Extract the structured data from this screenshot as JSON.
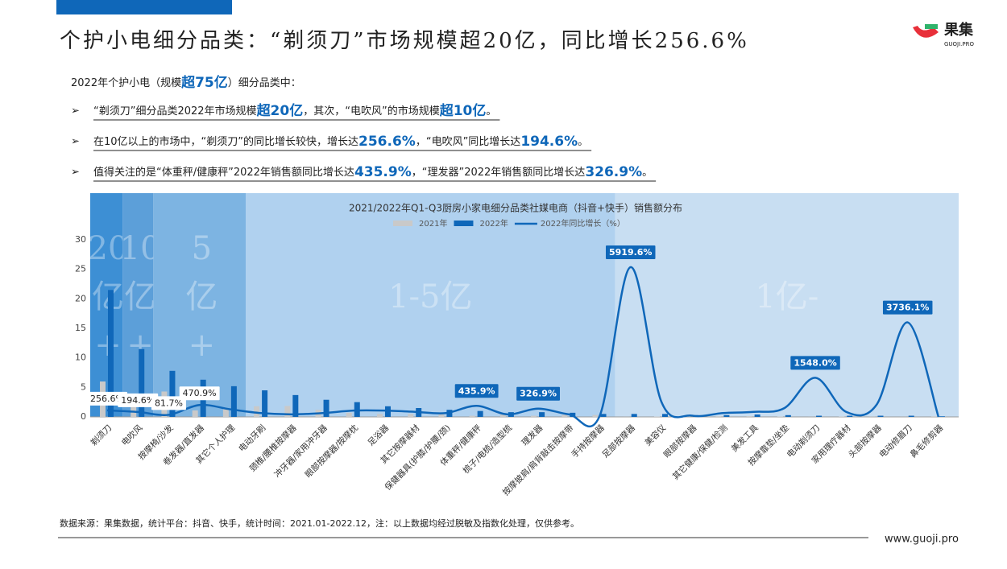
{
  "header": {
    "title": "个护小电细分品类：“剃须刀”市场规模超20亿，同比增长256.6%",
    "logo": "果集",
    "logo_sub": "GUOJI.PRO"
  },
  "intro": [
    {
      "text": "2022年个护小电（规模",
      "em": false
    },
    {
      "text": "超75亿",
      "em": true
    },
    {
      "text": "）细分品类中：",
      "em": false
    }
  ],
  "bullets": [
    [
      {
        "text": "“剃须刀”细分品类2022年市场规模",
        "em": false
      },
      {
        "text": "超20亿",
        "em": true
      },
      {
        "text": "，其次，“电吹风”的市场规模",
        "em": false
      },
      {
        "text": "超10亿",
        "em": true
      },
      {
        "text": "。",
        "em": false
      }
    ],
    [
      {
        "text": "在10亿以上的市场中，“剃须刀”的同比增长较快，增长达",
        "em": false
      },
      {
        "text": "256.6%",
        "em": true
      },
      {
        "text": "，“电吹风”同比增长达",
        "em": false
      },
      {
        "text": "194.6%",
        "em": true
      },
      {
        "text": "。",
        "em": false
      }
    ],
    [
      {
        "text": "值得关注的是“体重秤/健康秤”2022年销售额同比增长达",
        "em": false
      },
      {
        "text": "435.9%",
        "em": true
      },
      {
        "text": "，“理发器”2022年销售额同比增长达",
        "em": false
      },
      {
        "text": "326.9%",
        "em": true
      },
      {
        "text": "。",
        "em": false
      }
    ]
  ],
  "chart_data": {
    "type": "bar_line",
    "title": "2021/2022年Q1-Q3厨房小家电细分品类社媒电商（抖音+快手）销售额分布",
    "bands": [
      [
        "20",
        "亿",
        "+"
      ],
      [
        "10",
        "亿",
        "+"
      ],
      [
        "5",
        "亿",
        "+"
      ],
      [
        "1-5亿"
      ],
      [
        "1亿-"
      ]
    ],
    "categories": [
      "剃须刀",
      "电吹风",
      "按摩椅/沙发",
      "卷发器/直发器",
      "其它个人护理",
      "电动牙刷",
      "颈椎/腰椎按摩器",
      "冲牙器/家用冲牙器",
      "眼部按摩器/按摩枕",
      "足浴器",
      "其它按摩器材",
      "保健器具(护膝/护腰/颈)",
      "体重秤/健康秤",
      "梳子/电梳/造型梳",
      "理发器",
      "按摩披肩/肩背敲击按摩带",
      "手持按摩器",
      "足部按摩器",
      "美容仪",
      "眼部按摩器",
      "其它健康/保健/检测",
      "美发工具",
      "按摩靠垫/坐垫",
      "电动剃须刀",
      "家用理疗器材",
      "头部按摩器",
      "电动修眉刀",
      "鼻毛修剪器"
    ],
    "series": [
      {
        "name": "2021年",
        "color": "#c9c9c9",
        "values": [
          6.0,
          3.9,
          4.3,
          1.1,
          1.3,
          1.8,
          1.85,
          1.2,
          0.7,
          0.5,
          0.5,
          0.5,
          0.2,
          0.4,
          0.2,
          0.35,
          0.33,
          0.01,
          0.07,
          0.2,
          0.12,
          0.13,
          0.07,
          0.01,
          0.07,
          0.03,
          0.01,
          0.1
        ]
      },
      {
        "name": "2022年",
        "color": "#0f67b9",
        "values": [
          21.5,
          11.5,
          7.8,
          6.3,
          5.2,
          4.5,
          3.7,
          2.9,
          2.5,
          1.8,
          1.5,
          1.2,
          1.0,
          0.8,
          0.8,
          0.7,
          0.5,
          0.5,
          0.5,
          0.3,
          0.3,
          0.4,
          0.3,
          0.2,
          0.2,
          0.2,
          0.2,
          0.1
        ]
      },
      {
        "name": "2022年同比增长（%）",
        "color": "#0f67b9",
        "type": "line",
        "axis": "y2",
        "values": [
          256.6,
          194.6,
          81.7,
          470.9,
          300,
          150,
          100,
          150,
          250,
          250,
          200,
          150,
          435.9,
          100,
          326.9,
          100,
          50,
          5919.6,
          600,
          50,
          150,
          200,
          350,
          1548.0,
          200,
          500,
          3736.1,
          0
        ],
        "value_labels": [
          "256.6%",
          "194.6%",
          "81.7%",
          "470.9%",
          null,
          null,
          null,
          null,
          null,
          null,
          null,
          null,
          "435.9%",
          null,
          "326.9%",
          null,
          null,
          "5919.6%",
          null,
          null,
          null,
          null,
          null,
          "1548.0%",
          null,
          null,
          "3736.1%",
          null
        ]
      }
    ],
    "ylim": [
      0,
      30
    ],
    "yticks": [
      0,
      5,
      10,
      15,
      20,
      25,
      30
    ],
    "y2lim": [
      0,
      7000
    ]
  },
  "footer": {
    "source": "数据来源：果集数据，统计平台：抖音、快手，统计时间：2021.01-2022.12，注：以上数据均经过脱敏及指数化处理，仅供参考。",
    "url": "www.guoji.pro"
  }
}
